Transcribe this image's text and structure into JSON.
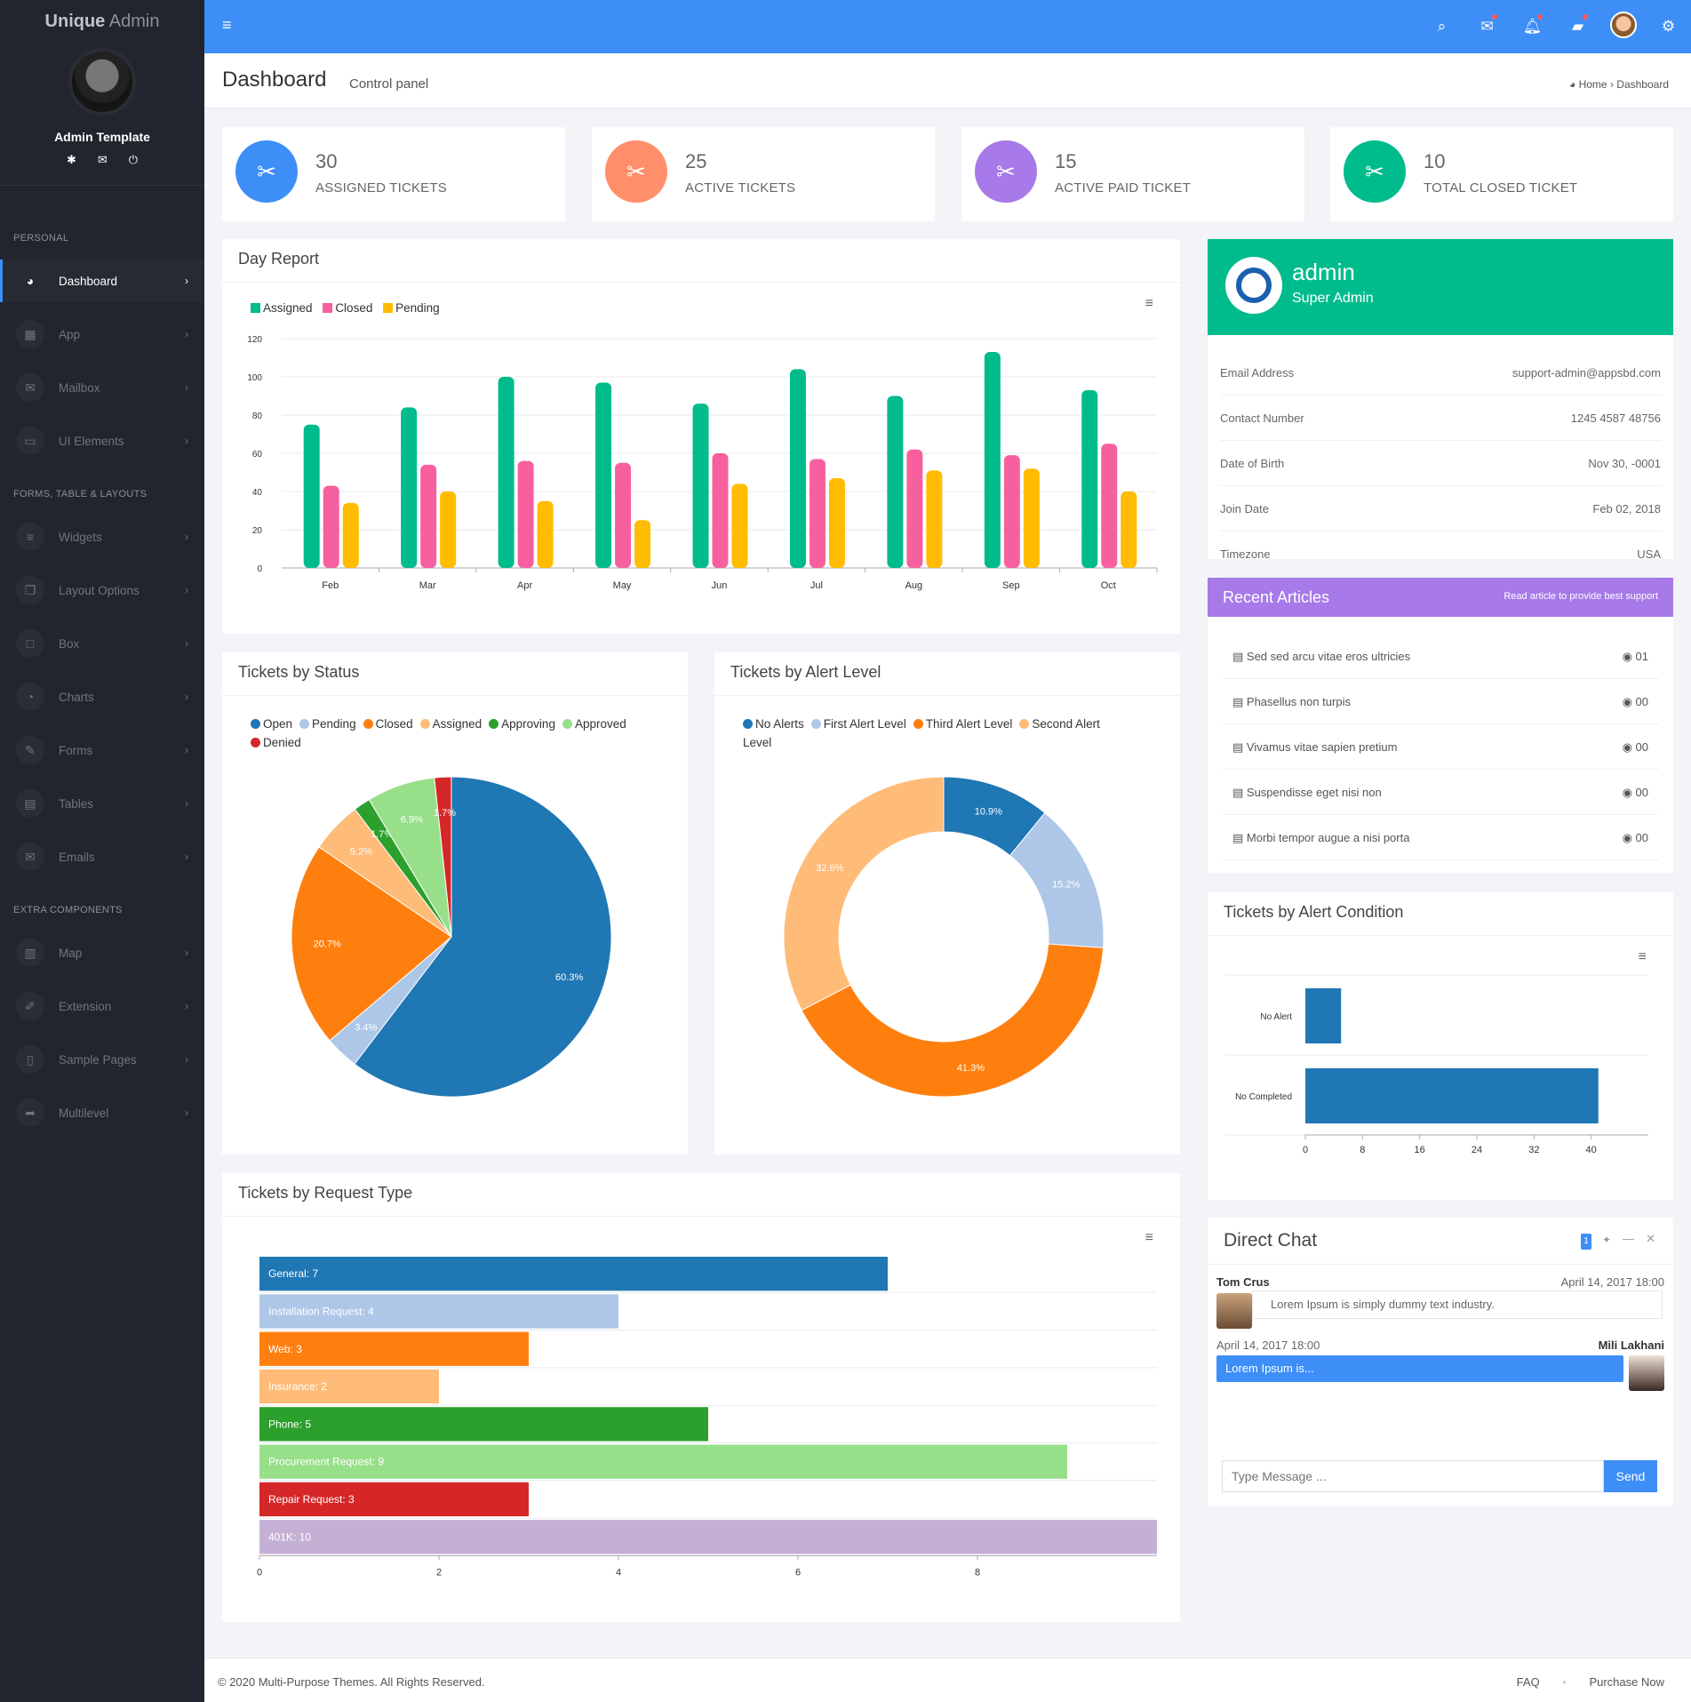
{
  "brand": {
    "bold": "Unique",
    "rest": " Admin"
  },
  "user": {
    "name": "Admin Template"
  },
  "sidebar": {
    "sections": [
      "PERSONAL",
      "FORMS, TABLE & LAYOUTS",
      "EXTRA COMPONENTS"
    ],
    "items": [
      {
        "label": "Dashboard",
        "icon": "dashboard-icon",
        "glyph": "◕"
      },
      {
        "label": "App",
        "icon": "grid-icon",
        "glyph": "▦"
      },
      {
        "label": "Mailbox",
        "icon": "envelope-icon",
        "glyph": "✉"
      },
      {
        "label": "UI Elements",
        "icon": "laptop-icon",
        "glyph": "▭"
      },
      {
        "label": "Widgets",
        "icon": "list-icon",
        "glyph": "≡"
      },
      {
        "label": "Layout Options",
        "icon": "copy-icon",
        "glyph": "❐"
      },
      {
        "label": "Box",
        "icon": "square-icon",
        "glyph": "□"
      },
      {
        "label": "Charts",
        "icon": "pie-chart-icon",
        "glyph": "◔"
      },
      {
        "label": "Forms",
        "icon": "edit-icon",
        "glyph": "✎"
      },
      {
        "label": "Tables",
        "icon": "table-icon",
        "glyph": "▤"
      },
      {
        "label": "Emails",
        "icon": "envelope-open-icon",
        "glyph": "✉"
      },
      {
        "label": "Map",
        "icon": "map-icon",
        "glyph": "▥"
      },
      {
        "label": "Extension",
        "icon": "plug-icon",
        "glyph": "✐"
      },
      {
        "label": "Sample Pages",
        "icon": "file-icon",
        "glyph": "▯"
      },
      {
        "label": "Multilevel",
        "icon": "share-icon",
        "glyph": "➦"
      }
    ]
  },
  "header": {
    "title": "Dashboard",
    "subtitle": "Control panel",
    "breadcrumb_home": "Home",
    "breadcrumb_current": "Dashboard"
  },
  "stats": [
    {
      "value": "30",
      "label": "ASSIGNED TICKETS",
      "color": "#3e8ef7"
    },
    {
      "value": "25",
      "label": "ACTIVE TICKETS",
      "color": "#ff8f6b"
    },
    {
      "value": "15",
      "label": "ACTIVE PAID TICKET",
      "color": "#a779e9"
    },
    {
      "value": "10",
      "label": "TOTAL CLOSED TICKET",
      "color": "#00bc8c"
    }
  ],
  "day_report": {
    "title": "Day Report"
  },
  "tickets_status": {
    "title": "Tickets by Status"
  },
  "tickets_alert": {
    "title": "Tickets by Alert Level"
  },
  "tickets_request": {
    "title": "Tickets by Request Type"
  },
  "tickets_condition": {
    "title": "Tickets by Alert Condition"
  },
  "profile": {
    "name": "admin",
    "role": "Super Admin",
    "rows": [
      {
        "label": "Email Address",
        "value": "support-admin@appsbd.com"
      },
      {
        "label": "Contact Number",
        "value": "1245 4587 48756"
      },
      {
        "label": "Date of Birth",
        "value": "Nov 30, -0001"
      },
      {
        "label": "Join Date",
        "value": "Feb 02, 2018"
      },
      {
        "label": "Timezone",
        "value": "USA"
      }
    ]
  },
  "articles": {
    "title": "Recent Articles",
    "subtitle": "Read article to provide best support",
    "items": [
      {
        "title": "Sed sed arcu vitae eros ultricies",
        "views": "01"
      },
      {
        "title": "Phasellus non turpis",
        "views": "00"
      },
      {
        "title": "Vivamus vitae sapien pretium",
        "views": "00"
      },
      {
        "title": "Suspendisse eget nisi non",
        "views": "00"
      },
      {
        "title": "Morbi tempor augue a nisi porta",
        "views": "00"
      }
    ]
  },
  "chat": {
    "title": "Direct Chat",
    "badge": "1",
    "messages": [
      {
        "name": "Tom Crus",
        "time": "April 14, 2017 18:00",
        "text": "Lorem Ipsum is simply dummy text industry."
      },
      {
        "name": "Mili Lakhani",
        "time": "April 14, 2017 18:00",
        "text": "Lorem Ipsum is..."
      }
    ],
    "placeholder": "Type Message ...",
    "send": "Send"
  },
  "footer": {
    "copyright": "© 2020 Multi-Purpose Themes. All Rights Reserved.",
    "faq": "FAQ",
    "purchase": "Purchase Now"
  },
  "chart_data": [
    {
      "type": "bar",
      "categories": [
        "Feb",
        "Mar",
        "Apr",
        "May",
        "Jun",
        "Jul",
        "Aug",
        "Sep",
        "Oct"
      ],
      "series": [
        {
          "name": "Assigned",
          "color": "#00bc8c",
          "values": [
            75,
            84,
            100,
            97,
            86,
            104,
            90,
            113,
            93
          ]
        },
        {
          "name": "Closed",
          "color": "#f7609e",
          "values": [
            43,
            54,
            56,
            55,
            60,
            57,
            62,
            59,
            65
          ]
        },
        {
          "name": "Pending",
          "color": "#ffbc00",
          "values": [
            34,
            40,
            35,
            25,
            44,
            47,
            51,
            52,
            40
          ]
        }
      ],
      "yticks": [
        "0",
        "20",
        "40",
        "60",
        "80",
        "100",
        "120"
      ],
      "ylim": [
        0,
        120
      ]
    },
    {
      "type": "pie",
      "legend": [
        "Open",
        "Pending",
        "Closed",
        "Assigned",
        "Approving",
        "Approved",
        "Denied"
      ],
      "colors": [
        "#1f77b4",
        "#aec7e8",
        "#ff7f0e",
        "#ffbb78",
        "#2ca02c",
        "#98df8a",
        "#d62728"
      ],
      "values": [
        60.3,
        3.4,
        20.7,
        5.2,
        1.7,
        6.9,
        1.7
      ],
      "labels": [
        "60.3%",
        "3.4%",
        "20.7%",
        "5.2%",
        "1.7%",
        "6.9%",
        "1.7%"
      ]
    },
    {
      "type": "pie",
      "legend": [
        "No Alerts",
        "First Alert Level",
        "Third Alert Level",
        "Second Alert Level"
      ],
      "colors": [
        "#1f77b4",
        "#aec7e8",
        "#ff7f0e",
        "#ffbb78"
      ],
      "values": [
        10.9,
        15.2,
        41.3,
        32.6
      ],
      "labels": [
        "10.9%",
        "15.2%",
        "41.3%",
        "32.6%"
      ]
    },
    {
      "type": "bar",
      "orientation": "horizontal",
      "categories": [
        "General",
        "Installation Request",
        "Web",
        "Insurance",
        "Phone",
        "Procurement Request",
        "Repair Request",
        "401K"
      ],
      "values": [
        7,
        4,
        3,
        2,
        5,
        9,
        3,
        10
      ],
      "bar_labels": [
        "General: 7",
        "Installation Request: 4",
        "Web: 3",
        "Insurance: 2",
        "Phone: 5",
        "Procurement Request: 9",
        "Repair Request: 3",
        "401K: 10"
      ],
      "colors": [
        "#1f77b4",
        "#aec7e8",
        "#ff7f0e",
        "#ffbb78",
        "#2ca02c",
        "#98df8a",
        "#d62728",
        "#c5b0d5"
      ],
      "xticks": [
        "0",
        "2",
        "4",
        "6",
        "8"
      ],
      "xlim": [
        0,
        10
      ]
    },
    {
      "type": "bar",
      "orientation": "horizontal",
      "categories": [
        "No Alert",
        "No Completed"
      ],
      "values": [
        5,
        41
      ],
      "color": "#1f77b4",
      "xticks": [
        "0",
        "8",
        "16",
        "24",
        "32",
        "40"
      ],
      "xlim": [
        0,
        48
      ]
    }
  ]
}
